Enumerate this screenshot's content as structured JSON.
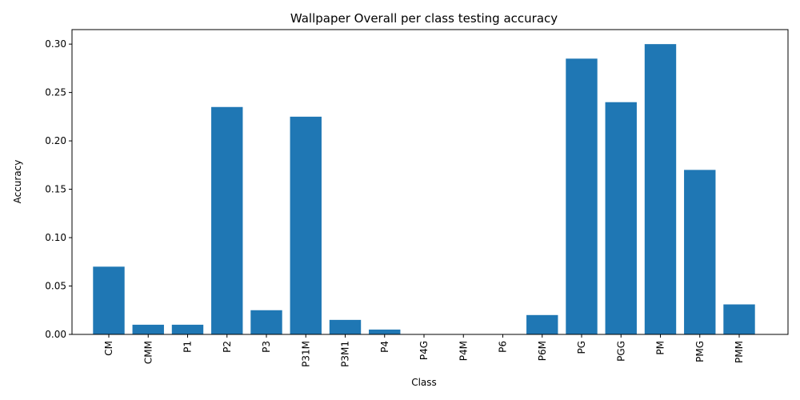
{
  "chart_data": {
    "type": "bar",
    "title": "Wallpaper Overall per class testing accuracy",
    "xlabel": "Class",
    "ylabel": "Accuracy",
    "categories": [
      "CM",
      "CMM",
      "P1",
      "P2",
      "P3",
      "P31M",
      "P3M1",
      "P4",
      "P4G",
      "P4M",
      "P6",
      "P6M",
      "PG",
      "PGG",
      "PM",
      "PMG",
      "PMM"
    ],
    "values": [
      0.07,
      0.01,
      0.01,
      0.235,
      0.025,
      0.225,
      0.015,
      0.005,
      0.0,
      0.0,
      0.0,
      0.02,
      0.285,
      0.24,
      0.3,
      0.17,
      0.031
    ],
    "ylim": [
      0,
      0.315
    ],
    "yticks": [
      0.0,
      0.05,
      0.1,
      0.15,
      0.2,
      0.25,
      0.3
    ],
    "ytick_labels": [
      "0.00",
      "0.05",
      "0.10",
      "0.15",
      "0.20",
      "0.25",
      "0.30"
    ],
    "bar_color": "#1f77b4",
    "grid": false,
    "legend": "none"
  }
}
